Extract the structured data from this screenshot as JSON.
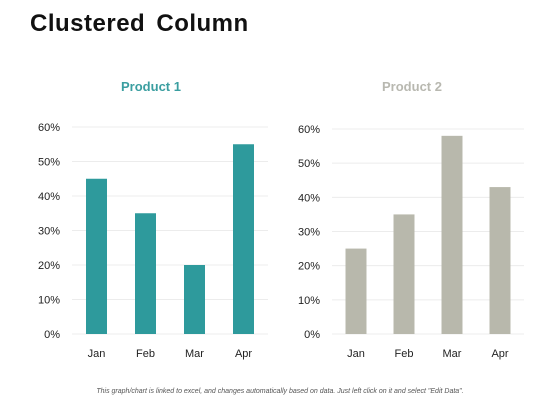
{
  "page": {
    "title": "Clustered Column",
    "footnote": "This graph/chart is linked to excel, and changes automatically based on data. Just left click on it and select \"Edit Data\"."
  },
  "chart_data": [
    {
      "type": "bar",
      "title": "Product 1",
      "title_color": "#3a9ea0",
      "bar_color": "#2e9a9c",
      "categories": [
        "Jan",
        "Feb",
        "Mar",
        "Apr"
      ],
      "values": [
        45,
        35,
        20,
        55
      ],
      "y_ticks": [
        "0%",
        "10%",
        "20%",
        "30%",
        "40%",
        "50%",
        "60%"
      ],
      "ylim": [
        0,
        60
      ],
      "grid": true
    },
    {
      "type": "bar",
      "title": "Product 2",
      "title_color": "#b8b8b0",
      "bar_color": "#b8b8ac",
      "categories": [
        "Jan",
        "Feb",
        "Mar",
        "Apr"
      ],
      "values": [
        25,
        35,
        58,
        43
      ],
      "y_ticks": [
        "0%",
        "10%",
        "20%",
        "30%",
        "40%",
        "50%",
        "60%"
      ],
      "ylim": [
        0,
        60
      ],
      "grid": true
    }
  ]
}
